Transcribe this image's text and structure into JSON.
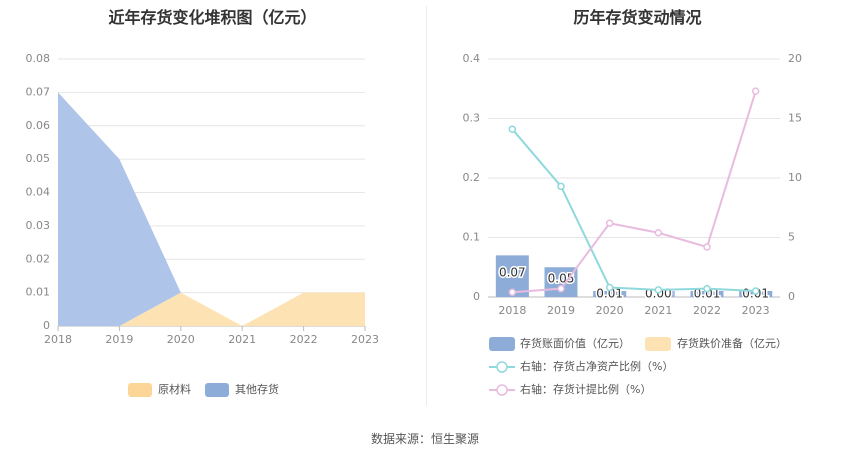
{
  "source_label": "数据来源：恒生聚源",
  "chart_data": [
    {
      "type": "area",
      "title": "近年存货变化堆积图（亿元）",
      "categories": [
        "2018",
        "2019",
        "2020",
        "2021",
        "2022",
        "2023"
      ],
      "ylim": [
        0,
        0.08
      ],
      "yticks": [
        "0",
        "0.01",
        "0.02",
        "0.03",
        "0.04",
        "0.05",
        "0.06",
        "0.07",
        "0.08"
      ],
      "series": [
        {
          "name": "原材料",
          "values": [
            0,
            0,
            0.01,
            0,
            0.01,
            0.01
          ],
          "color": "#fde3b3"
        },
        {
          "name": "其他存货",
          "values": [
            0.07,
            0.05,
            0,
            0,
            0,
            0
          ],
          "color": "#aec4e8"
        }
      ],
      "legend": [
        "原材料",
        "其他存货"
      ],
      "legend_colors": [
        "#fcd699",
        "#8eacd8"
      ],
      "grid": true
    },
    {
      "type": "bar",
      "title": "历年存货变动情况",
      "categories": [
        "2018",
        "2019",
        "2020",
        "2021",
        "2022",
        "2023"
      ],
      "ylim_left": [
        0,
        0.4
      ],
      "yticks_left": [
        "0",
        "0.1",
        "0.2",
        "0.3",
        "0.4"
      ],
      "ylim_right": [
        0,
        20
      ],
      "yticks_right": [
        "0",
        "5",
        "10",
        "15",
        "20"
      ],
      "series": [
        {
          "name": "存货账面价值（亿元）",
          "kind": "bar",
          "axis": "left",
          "values": [
            0.07,
            0.05,
            0.01,
            0.0,
            0.01,
            0.01
          ],
          "labels": [
            "0.07",
            "0.05",
            "0.01",
            "0.00",
            "0.01",
            "0.01"
          ],
          "color": "#8eacd8"
        },
        {
          "name": "存货跌价准备（亿元）",
          "kind": "bar",
          "axis": "left",
          "values": [
            0,
            0,
            0,
            0,
            0,
            0
          ],
          "color": "#fde3b3"
        },
        {
          "name": "右轴：存货占净资产比例（%）",
          "kind": "line",
          "axis": "right",
          "values": [
            14.1,
            9.3,
            0.8,
            0.6,
            0.7,
            0.5
          ],
          "color": "#8fd9dc"
        },
        {
          "name": "右轴：存货计提比例（%）",
          "kind": "line",
          "axis": "right",
          "values": [
            0.4,
            0.7,
            6.2,
            5.4,
            4.2,
            17.3
          ],
          "color": "#e8bcdf"
        }
      ],
      "grid": true
    }
  ]
}
